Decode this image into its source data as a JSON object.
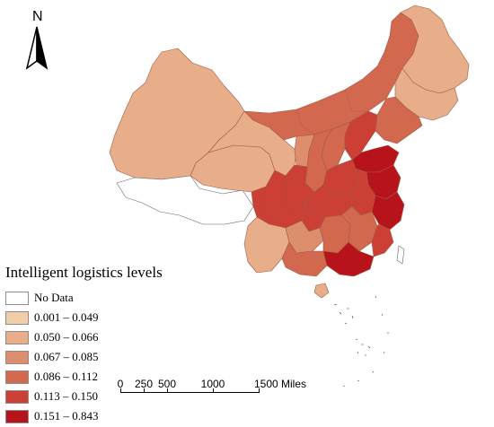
{
  "map": {
    "north_label": "N",
    "legend": {
      "title": "Intelligent logistics levels",
      "items": [
        {
          "label": "No Data",
          "color": "#ffffff"
        },
        {
          "label": "0.001 – 0.049",
          "color": "#f1cda9"
        },
        {
          "label": "0.050 – 0.066",
          "color": "#e8ae8a"
        },
        {
          "label": "0.067 – 0.085",
          "color": "#dd8e6d"
        },
        {
          "label": "0.086 – 0.112",
          "color": "#d2694f"
        },
        {
          "label": "0.113 – 0.150",
          "color": "#cc3f35"
        },
        {
          "label": "0.151 – 0.843",
          "color": "#b6141a"
        }
      ]
    },
    "scale_bar": {
      "labels": [
        "0",
        "250",
        "500",
        "1000",
        "1500 Miles"
      ]
    }
  }
}
